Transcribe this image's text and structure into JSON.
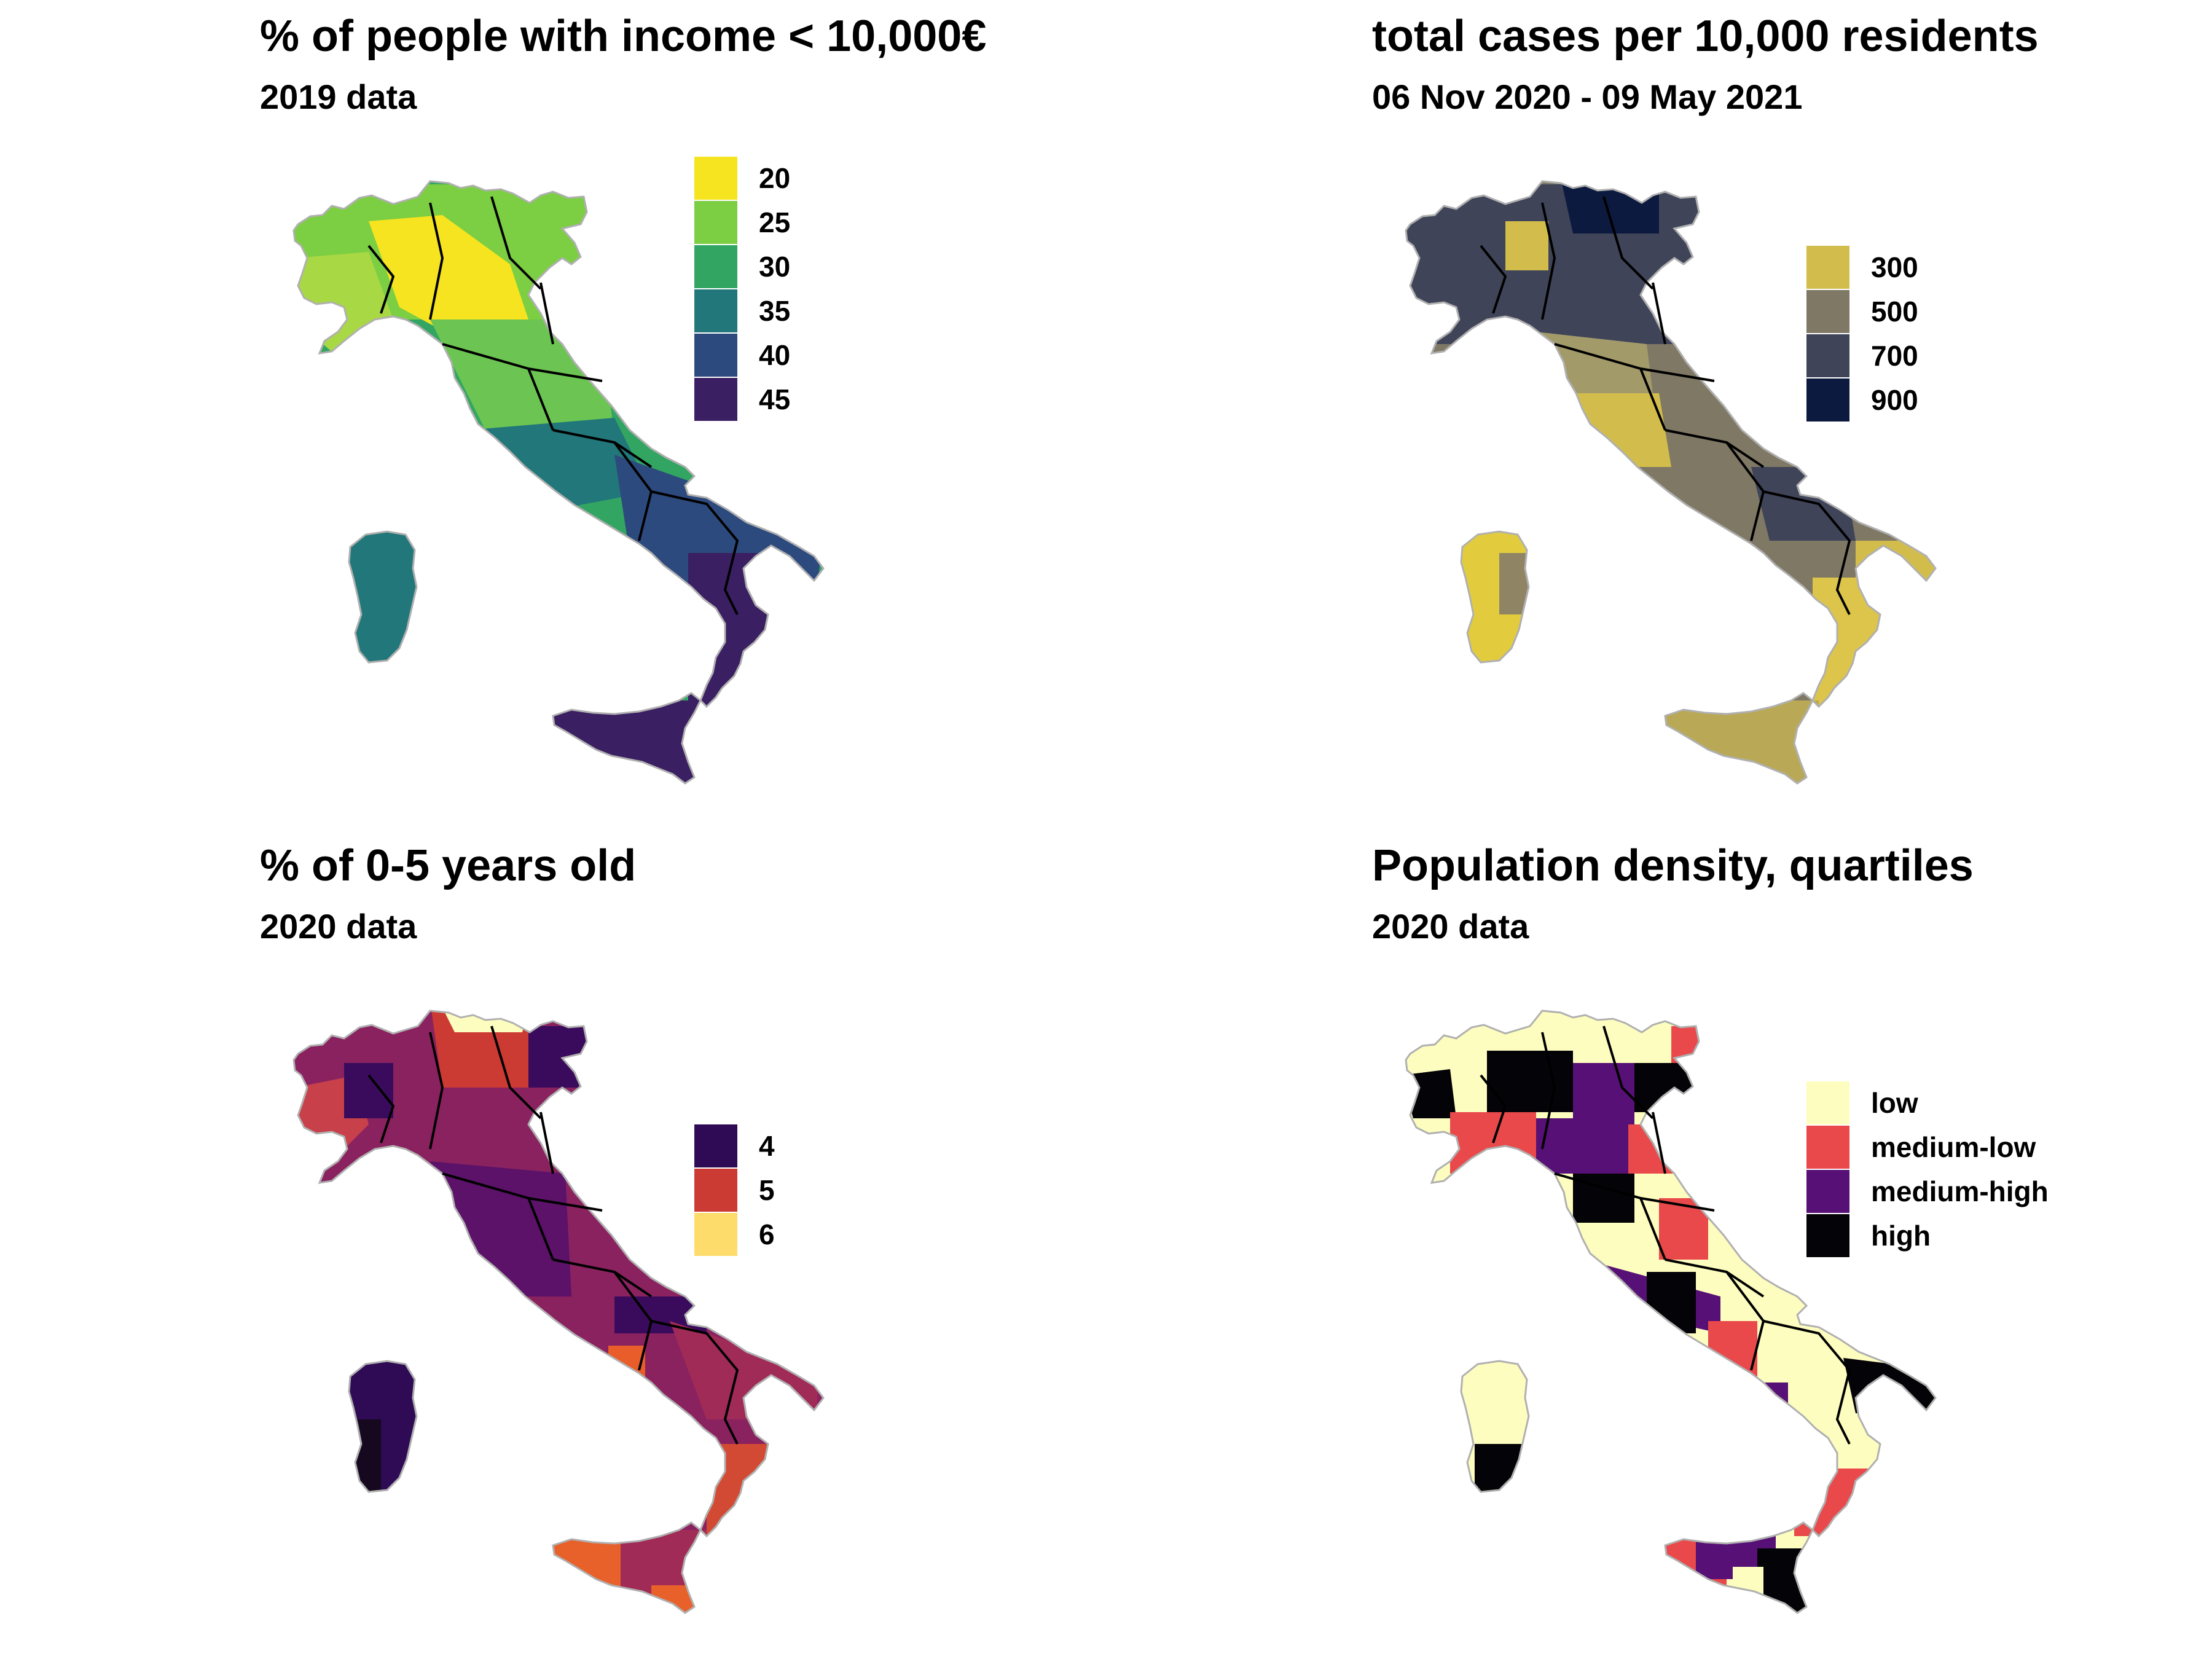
{
  "panels": [
    {
      "title": "% of people with income < 10,000€",
      "subtitle": "2019 data",
      "legend": [
        {
          "label": "20",
          "color": "#f5e41f"
        },
        {
          "label": "25",
          "color": "#7cce42"
        },
        {
          "label": "30",
          "color": "#33a562"
        },
        {
          "label": "35",
          "color": "#21777a"
        },
        {
          "label": "40",
          "color": "#2d4a7e"
        },
        {
          "label": "45",
          "color": "#3a1f62"
        }
      ]
    },
    {
      "title": "total cases per 10,000 residents",
      "subtitle": "06 Nov 2020 - 09 May 2021",
      "legend": [
        {
          "label": "300",
          "color": "#d2bd4c"
        },
        {
          "label": "500",
          "color": "#7f7865"
        },
        {
          "label": "700",
          "color": "#3f4459"
        },
        {
          "label": "900",
          "color": "#0c1a3f"
        }
      ]
    },
    {
      "title": "% of 0-5 years old",
      "subtitle": "2020 data",
      "legend": [
        {
          "label": "4",
          "color": "#2f0a55"
        },
        {
          "label": "5",
          "color": "#cb3a33"
        },
        {
          "label": "6",
          "color": "#fddc6b"
        }
      ]
    },
    {
      "title": "Population density, quartiles",
      "subtitle": "2020 data",
      "legend": [
        {
          "label": "low",
          "color": "#fdfdbf"
        },
        {
          "label": "medium-low",
          "color": "#e9494a"
        },
        {
          "label": "medium-high",
          "color": "#571075"
        },
        {
          "label": "high",
          "color": "#040307"
        }
      ]
    }
  ]
}
